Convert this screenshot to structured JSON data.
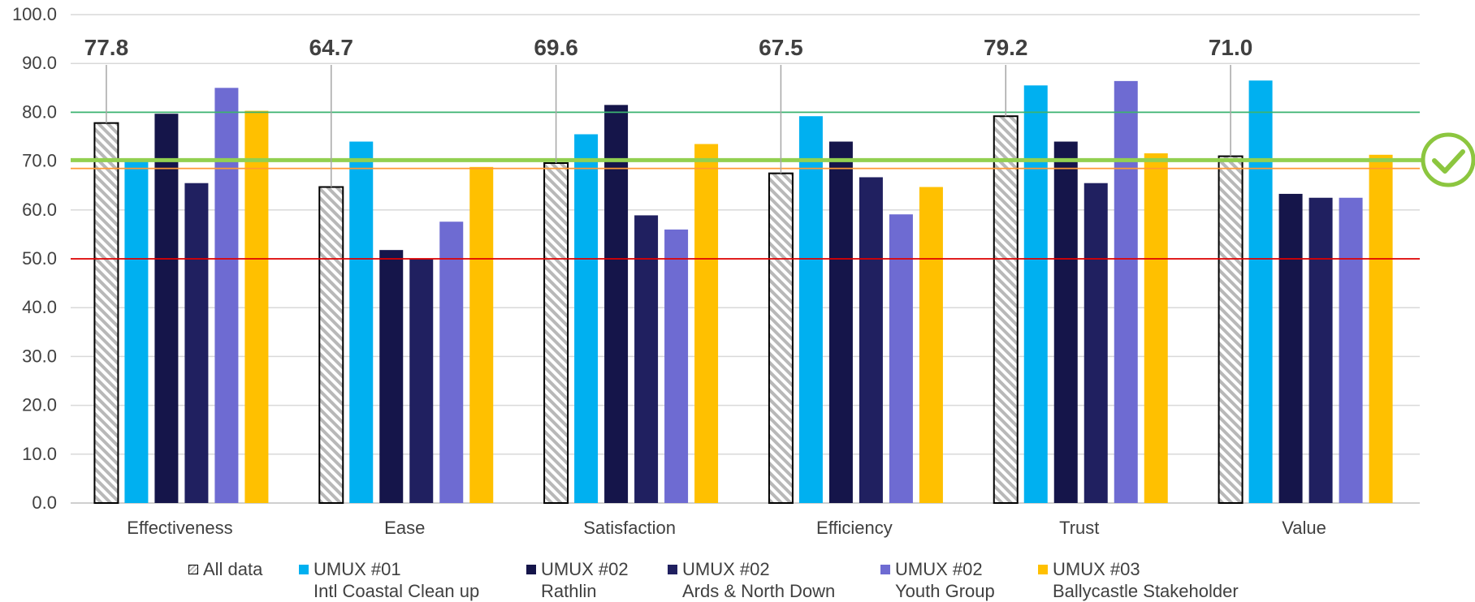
{
  "chart_data": {
    "type": "bar",
    "categories": [
      "Effectiveness",
      "Ease",
      "Satisfaction",
      "Efficiency",
      "Trust",
      "Value"
    ],
    "ylim": [
      0,
      100
    ],
    "yticks": [
      "0.0",
      "10.0",
      "20.0",
      "30.0",
      "40.0",
      "50.0",
      "60.0",
      "70.0",
      "80.0",
      "90.0",
      "100.0"
    ],
    "grid": true,
    "legend_position": "bottom",
    "series": [
      {
        "name": "All data",
        "sub": "",
        "color": "#d9d9d9",
        "pattern": "hatched",
        "values": [
          77.8,
          64.7,
          69.6,
          67.5,
          79.2,
          71.0
        ]
      },
      {
        "name": "UMUX #01",
        "sub": "Intl Coastal Clean up",
        "color": "#00b0f0",
        "values": [
          70.0,
          74.0,
          75.5,
          79.2,
          85.5,
          86.5
        ]
      },
      {
        "name": "UMUX #02",
        "sub": "Rathlin",
        "color": "#15154a",
        "values": [
          79.7,
          51.8,
          81.5,
          74.0,
          74.0,
          63.3
        ]
      },
      {
        "name": "UMUX #02",
        "sub": "Ards & North Down",
        "color": "#202060",
        "values": [
          65.5,
          50.0,
          58.9,
          66.7,
          65.5,
          62.5
        ]
      },
      {
        "name": "UMUX #02",
        "sub": "Youth Group",
        "color": "#6e6bd2",
        "values": [
          85.0,
          57.6,
          56.0,
          59.1,
          86.4,
          62.5
        ]
      },
      {
        "name": "UMUX #03",
        "sub": "Ballycastle Stakeholder",
        "color": "#ffc000",
        "values": [
          80.3,
          68.8,
          73.5,
          64.7,
          71.6,
          71.3
        ]
      }
    ],
    "data_labels": [
      "77.8",
      "64.7",
      "69.6",
      "67.5",
      "79.2",
      "71.0"
    ],
    "reference_lines": [
      {
        "value": 80,
        "color": "#3cb371"
      },
      {
        "value": 70.2,
        "color": "#92d050"
      },
      {
        "value": 68.5,
        "color": "#ff9933"
      },
      {
        "value": 50,
        "color": "#e00000"
      }
    ],
    "badge": {
      "icon": "checkmark-circle-icon",
      "color": "#8cc63f"
    }
  }
}
